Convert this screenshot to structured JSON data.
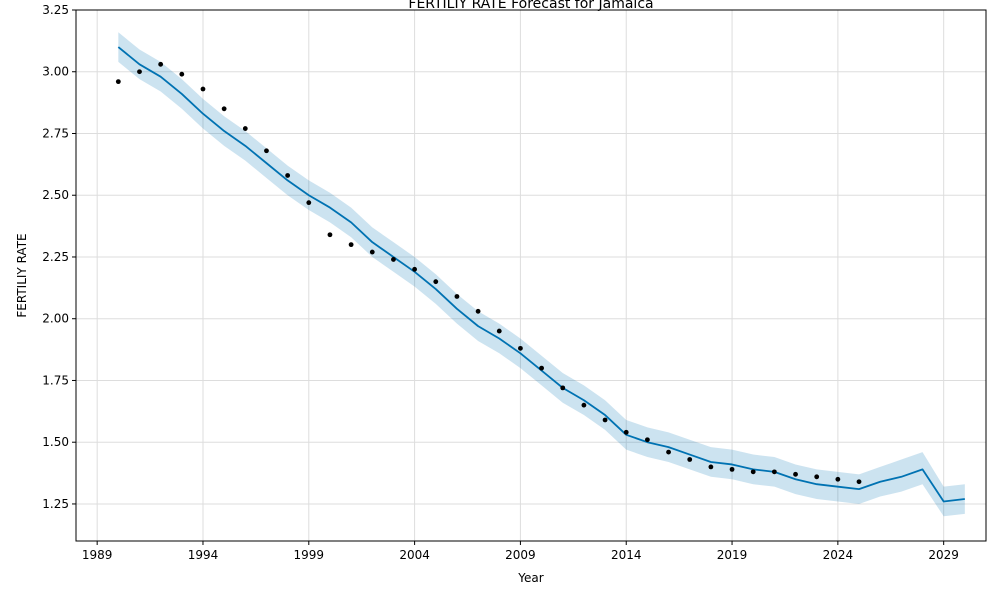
{
  "chart_data": {
    "type": "line",
    "title": "FERTILIY RATE Forecast for Jamaica",
    "xlabel": "Year",
    "ylabel": "FERTILIY RATE",
    "xlim": [
      1988,
      2031
    ],
    "ylim": [
      1.1,
      3.25
    ],
    "x_ticks": [
      1989,
      1994,
      1999,
      2004,
      2009,
      2014,
      2019,
      2024,
      2029
    ],
    "y_ticks": [
      1.25,
      1.5,
      1.75,
      2.0,
      2.25,
      2.5,
      2.75,
      3.0,
      3.25
    ],
    "grid": true,
    "colors": {
      "forecast": "#0072b2",
      "interval": "#0072b2",
      "actual": "#000000",
      "grid": "#dddddd"
    },
    "series": [
      {
        "role": "forecast",
        "x": [
          1990,
          1991,
          1992,
          1993,
          1994,
          1995,
          1996,
          1997,
          1998,
          1999,
          2000,
          2001,
          2002,
          2003,
          2004,
          2005,
          2006,
          2007,
          2008,
          2009,
          2010,
          2011,
          2012,
          2013,
          2014,
          2015,
          2016,
          2017,
          2018,
          2019,
          2020,
          2021,
          2022,
          2023,
          2024,
          2025,
          2026,
          2027,
          2028,
          2029,
          2030
        ],
        "values": [
          3.1,
          3.03,
          2.98,
          2.91,
          2.83,
          2.76,
          2.7,
          2.63,
          2.56,
          2.5,
          2.45,
          2.39,
          2.31,
          2.25,
          2.19,
          2.12,
          2.04,
          1.97,
          1.92,
          1.86,
          1.79,
          1.72,
          1.67,
          1.61,
          1.53,
          1.5,
          1.48,
          1.45,
          1.42,
          1.41,
          1.39,
          1.38,
          1.35,
          1.33,
          1.32,
          1.31,
          1.34,
          1.36,
          1.39,
          1.26,
          1.27
        ]
      },
      {
        "role": "interval_upper",
        "x": [
          1990,
          1991,
          1992,
          1993,
          1994,
          1995,
          1996,
          1997,
          1998,
          1999,
          2000,
          2001,
          2002,
          2003,
          2004,
          2005,
          2006,
          2007,
          2008,
          2009,
          2010,
          2011,
          2012,
          2013,
          2014,
          2015,
          2016,
          2017,
          2018,
          2019,
          2020,
          2021,
          2022,
          2023,
          2024,
          2025,
          2026,
          2027,
          2028,
          2029,
          2030
        ],
        "values": [
          3.16,
          3.09,
          3.04,
          2.97,
          2.89,
          2.82,
          2.76,
          2.69,
          2.62,
          2.56,
          2.51,
          2.45,
          2.37,
          2.31,
          2.25,
          2.18,
          2.1,
          2.03,
          1.98,
          1.92,
          1.85,
          1.78,
          1.73,
          1.67,
          1.59,
          1.56,
          1.54,
          1.51,
          1.48,
          1.47,
          1.45,
          1.44,
          1.41,
          1.39,
          1.38,
          1.37,
          1.4,
          1.43,
          1.46,
          1.32,
          1.33
        ]
      },
      {
        "role": "interval_lower",
        "x": [
          1990,
          1991,
          1992,
          1993,
          1994,
          1995,
          1996,
          1997,
          1998,
          1999,
          2000,
          2001,
          2002,
          2003,
          2004,
          2005,
          2006,
          2007,
          2008,
          2009,
          2010,
          2011,
          2012,
          2013,
          2014,
          2015,
          2016,
          2017,
          2018,
          2019,
          2020,
          2021,
          2022,
          2023,
          2024,
          2025,
          2026,
          2027,
          2028,
          2029,
          2030
        ],
        "values": [
          3.04,
          2.97,
          2.92,
          2.85,
          2.77,
          2.7,
          2.64,
          2.57,
          2.5,
          2.44,
          2.39,
          2.33,
          2.25,
          2.19,
          2.13,
          2.06,
          1.98,
          1.91,
          1.86,
          1.8,
          1.73,
          1.66,
          1.61,
          1.55,
          1.47,
          1.44,
          1.42,
          1.39,
          1.36,
          1.35,
          1.33,
          1.32,
          1.29,
          1.27,
          1.26,
          1.25,
          1.28,
          1.3,
          1.33,
          1.2,
          1.21
        ]
      },
      {
        "role": "actual",
        "x": [
          1990,
          1991,
          1992,
          1993,
          1994,
          1995,
          1996,
          1997,
          1998,
          1999,
          2000,
          2001,
          2002,
          2003,
          2004,
          2005,
          2006,
          2007,
          2008,
          2009,
          2010,
          2011,
          2012,
          2013,
          2014,
          2015,
          2016,
          2017,
          2018,
          2019,
          2020,
          2021,
          2022,
          2023,
          2024,
          2025
        ],
        "values": [
          2.96,
          3.0,
          3.03,
          2.99,
          2.93,
          2.85,
          2.77,
          2.68,
          2.58,
          2.47,
          2.34,
          2.3,
          2.27,
          2.24,
          2.2,
          2.15,
          2.09,
          2.03,
          1.95,
          1.88,
          1.8,
          1.72,
          1.65,
          1.59,
          1.54,
          1.51,
          1.46,
          1.43,
          1.4,
          1.39,
          1.38,
          1.38,
          1.37,
          1.36,
          1.35,
          1.34
        ]
      }
    ]
  }
}
